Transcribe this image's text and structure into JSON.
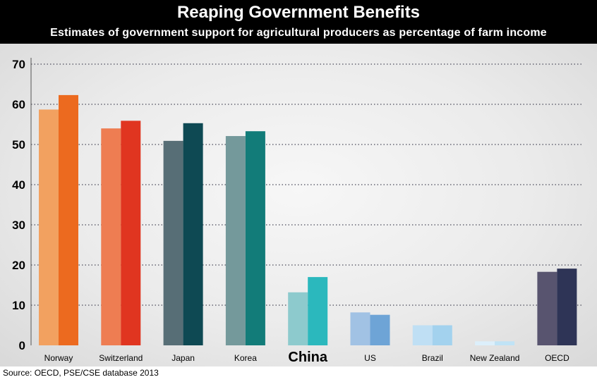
{
  "title": "Reaping Government Benefits",
  "subtitle": "Estimates of government support for agricultural producers as percentage of farm income",
  "source": "Source: OECD, PSE/CSE database 2013",
  "chart_data": {
    "type": "bar",
    "categories": [
      "Norway",
      "Switzerland",
      "Japan",
      "Korea",
      "China",
      "US",
      "Brazil",
      "New Zealand",
      "OECD"
    ],
    "highlight_category": "China",
    "series": [
      {
        "values": [
          58.7,
          54.0,
          50.9,
          52.1,
          13.2,
          8.2,
          5.0,
          1.0,
          18.3
        ]
      },
      {
        "values": [
          62.3,
          55.9,
          55.3,
          53.3,
          17.0,
          7.6,
          5.0,
          1.0,
          19.1
        ]
      }
    ],
    "colors": [
      [
        "#f2a160",
        "#ec6a1f"
      ],
      [
        "#ee7d52",
        "#e03520"
      ],
      [
        "#576e76",
        "#0e4953"
      ],
      [
        "#74999b",
        "#127c79"
      ],
      [
        "#8dcacd",
        "#2bb8bd"
      ],
      [
        "#a1c2e4",
        "#6ea4d6"
      ],
      [
        "#bfdff4",
        "#a3d2ee"
      ],
      [
        "#dceffb",
        "#c0e3f6"
      ],
      [
        "#58546f",
        "#2e3456"
      ]
    ],
    "ylim": [
      0,
      70
    ],
    "yticks": [
      0,
      10,
      20,
      30,
      40,
      50,
      60,
      70
    ],
    "grid": true,
    "xlabel": "",
    "ylabel": ""
  }
}
